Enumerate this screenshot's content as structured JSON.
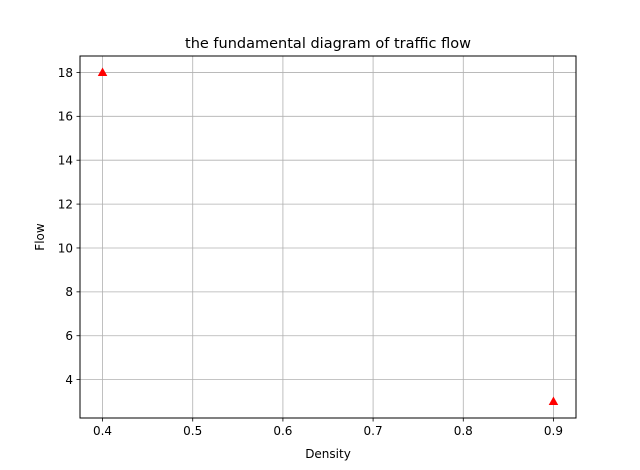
{
  "chart_data": {
    "type": "scatter",
    "title": "the fundamental diagram of traffic flow",
    "xlabel": "Density",
    "ylabel": "Flow",
    "xlim": [
      0.375,
      0.925
    ],
    "ylim": [
      2.25,
      18.75
    ],
    "x_ticks": [
      0.4,
      0.5,
      0.6,
      0.7,
      0.8,
      0.9
    ],
    "x_tick_labels": [
      "0.4",
      "0.5",
      "0.6",
      "0.7",
      "0.8",
      "0.9"
    ],
    "y_ticks": [
      4,
      6,
      8,
      10,
      12,
      14,
      16,
      18
    ],
    "y_tick_labels": [
      "4",
      "6",
      "8",
      "10",
      "12",
      "14",
      "16",
      "18"
    ],
    "grid": true,
    "marker": "triangle-up",
    "series": [
      {
        "color": "#ff0000",
        "x": [
          0.4,
          0.9
        ],
        "y": [
          18,
          3
        ]
      }
    ]
  }
}
